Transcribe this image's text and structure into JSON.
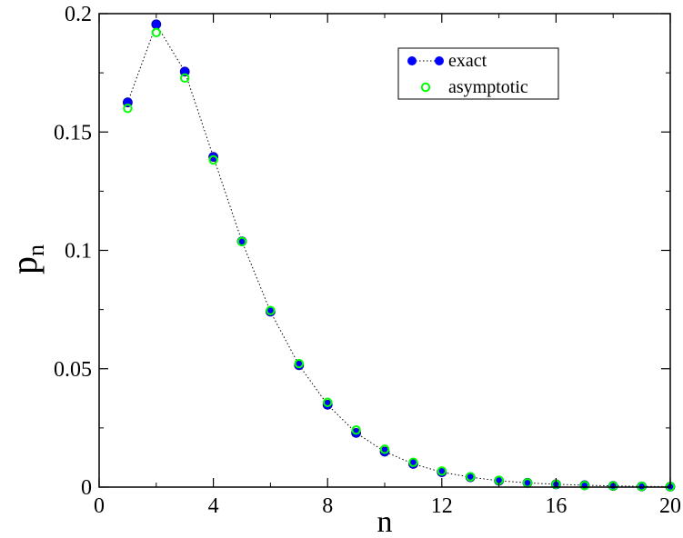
{
  "chart_data": {
    "type": "scatter",
    "title": "",
    "xlabel": "n",
    "ylabel": "p",
    "ylabel_subscript": "n",
    "xlim": [
      0,
      20
    ],
    "ylim": [
      0,
      0.2
    ],
    "x_ticks": [
      0,
      4,
      8,
      12,
      16,
      20
    ],
    "x_tick_labels": [
      "0",
      "4",
      "8",
      "12",
      "16",
      "20"
    ],
    "y_ticks": [
      0,
      0.05,
      0.1,
      0.15,
      0.2
    ],
    "y_tick_labels": [
      "0",
      "0.05",
      "0.1",
      "0.15",
      "0.2"
    ],
    "grid": false,
    "legend_position": "top-right",
    "x": [
      1,
      2,
      3,
      4,
      5,
      6,
      7,
      8,
      9,
      10,
      11,
      12,
      13,
      14,
      15,
      16,
      17,
      18,
      19,
      20
    ],
    "series": [
      {
        "name": "exact",
        "color": "#0000ff",
        "marker": "filled-circle",
        "line": "dotted",
        "values": [
          0.1625,
          0.1955,
          0.1755,
          0.1395,
          0.1038,
          0.0741,
          0.0515,
          0.0348,
          0.0229,
          0.015,
          0.0098,
          0.0063,
          0.0042,
          0.0027,
          0.0018,
          0.0012,
          0.0008,
          0.0005,
          0.0003,
          0.0002
        ]
      },
      {
        "name": "asymptotic",
        "color": "#00ff00",
        "marker": "open-circle",
        "line": "none",
        "values": [
          0.16,
          0.192,
          0.1728,
          0.1382,
          0.1037,
          0.0746,
          0.0522,
          0.0358,
          0.0241,
          0.016,
          0.0105,
          0.0068,
          0.0044,
          0.0029,
          0.0018,
          0.0012,
          0.0007,
          0.0005,
          0.0003,
          0.0002
        ]
      }
    ]
  }
}
